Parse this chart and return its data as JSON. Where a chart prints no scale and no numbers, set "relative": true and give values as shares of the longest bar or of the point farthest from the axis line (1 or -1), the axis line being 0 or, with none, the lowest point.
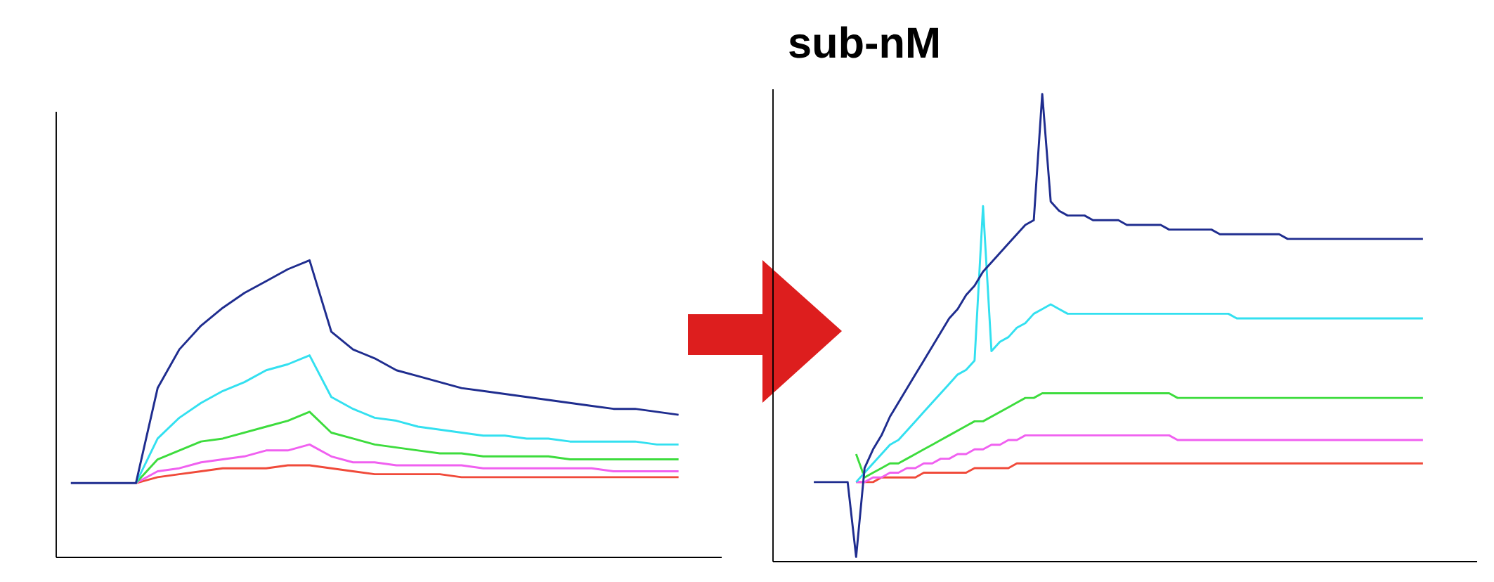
{
  "chart_data": [
    {
      "type": "line",
      "relative": true,
      "categories": [
        null,
        null,
        null,
        null,
        null,
        null,
        null,
        null,
        null,
        null,
        null,
        null,
        null,
        null,
        null,
        null,
        null,
        null,
        null,
        null,
        null,
        null,
        null,
        null,
        null,
        null,
        null,
        null,
        null
      ],
      "series": [
        {
          "color": "#1f2d8f",
          "values": [
            0.25,
            0.25,
            0.25,
            0.25,
            0.57,
            0.7,
            0.78,
            0.84,
            0.89,
            0.93,
            0.97,
            1.0,
            0.76,
            0.7,
            0.67,
            0.63,
            0.61,
            0.59,
            0.57,
            0.56,
            0.55,
            0.54,
            0.53,
            0.52,
            0.51,
            0.5,
            0.5,
            0.49,
            0.48
          ]
        },
        {
          "color": "#33e0f0",
          "values": [
            null,
            null,
            null,
            0.25,
            0.4,
            0.47,
            0.52,
            0.56,
            0.59,
            0.63,
            0.65,
            0.68,
            0.54,
            0.5,
            0.47,
            0.46,
            0.44,
            0.43,
            0.42,
            0.41,
            0.41,
            0.4,
            0.4,
            0.39,
            0.39,
            0.39,
            0.39,
            0.38,
            0.38
          ]
        },
        {
          "color": "#3ddc3d",
          "values": [
            null,
            null,
            null,
            0.25,
            0.33,
            0.36,
            0.39,
            0.4,
            0.42,
            0.44,
            0.46,
            0.49,
            0.42,
            0.4,
            0.38,
            0.37,
            0.36,
            0.35,
            0.35,
            0.34,
            0.34,
            0.34,
            0.34,
            0.33,
            0.33,
            0.33,
            0.33,
            0.33,
            0.33
          ]
        },
        {
          "color": "#f060f0",
          "values": [
            null,
            null,
            null,
            0.25,
            0.29,
            0.3,
            0.32,
            0.33,
            0.34,
            0.36,
            0.36,
            0.38,
            0.34,
            0.32,
            0.32,
            0.31,
            0.31,
            0.31,
            0.31,
            0.3,
            0.3,
            0.3,
            0.3,
            0.3,
            0.3,
            0.29,
            0.29,
            0.29,
            0.29
          ]
        },
        {
          "color": "#f04a3a",
          "values": [
            null,
            null,
            null,
            0.25,
            0.27,
            0.28,
            0.29,
            0.3,
            0.3,
            0.3,
            0.31,
            0.31,
            0.3,
            0.29,
            0.28,
            0.28,
            0.28,
            0.28,
            0.27,
            0.27,
            0.27,
            0.27,
            0.27,
            0.27,
            0.27,
            0.27,
            0.27,
            0.27,
            0.27
          ]
        }
      ]
    },
    {
      "type": "line",
      "relative": true,
      "title": "sub-nM",
      "categories": [
        null,
        null,
        null,
        null,
        null,
        null,
        null,
        null,
        null,
        null,
        null,
        null,
        null,
        null,
        null,
        null,
        null,
        null,
        null,
        null,
        null,
        null,
        null,
        null,
        null,
        null,
        null,
        null,
        null,
        null,
        null,
        null,
        null,
        null,
        null,
        null,
        null,
        null,
        null,
        null,
        null,
        null,
        null,
        null,
        null,
        null,
        null,
        null,
        null,
        null,
        null,
        null,
        null,
        null,
        null,
        null,
        null,
        null,
        null,
        null,
        null,
        null,
        null,
        null,
        null,
        null,
        null,
        null,
        null,
        null,
        null,
        null,
        null
      ],
      "series": [
        {
          "color": "#1f2d8f",
          "values": [
            0.17,
            0.17,
            0.17,
            0.17,
            0.17,
            0.01,
            0.2,
            0.24,
            0.27,
            0.31,
            0.34,
            0.37,
            0.4,
            0.43,
            0.46,
            0.49,
            0.52,
            0.54,
            0.57,
            0.59,
            0.62,
            0.64,
            0.66,
            0.68,
            0.7,
            0.72,
            0.73,
            1.0,
            0.77,
            0.75,
            0.74,
            0.74,
            0.74,
            0.73,
            0.73,
            0.73,
            0.73,
            0.72,
            0.72,
            0.72,
            0.72,
            0.72,
            0.71,
            0.71,
            0.71,
            0.71,
            0.71,
            0.71,
            0.7,
            0.7,
            0.7,
            0.7,
            0.7,
            0.7,
            0.7,
            0.7,
            0.69,
            0.69,
            0.69,
            0.69,
            0.69,
            0.69,
            0.69,
            0.69,
            0.69,
            0.69,
            0.69,
            0.69,
            0.69,
            0.69,
            0.69,
            0.69,
            0.69
          ]
        },
        {
          "color": "#33e0f0",
          "values": [
            null,
            null,
            null,
            null,
            null,
            0.17,
            0.19,
            0.21,
            0.23,
            0.25,
            0.26,
            0.28,
            0.3,
            0.32,
            0.34,
            0.36,
            0.38,
            0.4,
            0.41,
            0.43,
            0.76,
            0.45,
            0.47,
            0.48,
            0.5,
            0.51,
            0.53,
            0.54,
            0.55,
            0.54,
            0.53,
            0.53,
            0.53,
            0.53,
            0.53,
            0.53,
            0.53,
            0.53,
            0.53,
            0.53,
            0.53,
            0.53,
            0.53,
            0.53,
            0.53,
            0.53,
            0.53,
            0.53,
            0.53,
            0.53,
            0.52,
            0.52,
            0.52,
            0.52,
            0.52,
            0.52,
            0.52,
            0.52,
            0.52,
            0.52,
            0.52,
            0.52,
            0.52,
            0.52,
            0.52,
            0.52,
            0.52,
            0.52,
            0.52,
            0.52,
            0.52,
            0.52,
            0.52
          ]
        },
        {
          "color": "#3ddc3d",
          "values": [
            null,
            null,
            null,
            null,
            null,
            0.23,
            0.18,
            0.19,
            0.2,
            0.21,
            0.21,
            0.22,
            0.23,
            0.24,
            0.25,
            0.26,
            0.27,
            0.28,
            0.29,
            0.3,
            0.3,
            0.31,
            0.32,
            0.33,
            0.34,
            0.35,
            0.35,
            0.36,
            0.36,
            0.36,
            0.36,
            0.36,
            0.36,
            0.36,
            0.36,
            0.36,
            0.36,
            0.36,
            0.36,
            0.36,
            0.36,
            0.36,
            0.36,
            0.35,
            0.35,
            0.35,
            0.35,
            0.35,
            0.35,
            0.35,
            0.35,
            0.35,
            0.35,
            0.35,
            0.35,
            0.35,
            0.35,
            0.35,
            0.35,
            0.35,
            0.35,
            0.35,
            0.35,
            0.35,
            0.35,
            0.35,
            0.35,
            0.35,
            0.35,
            0.35,
            0.35,
            0.35,
            0.35
          ]
        },
        {
          "color": "#f060f0",
          "values": [
            null,
            null,
            null,
            null,
            null,
            0.17,
            0.17,
            0.18,
            0.18,
            0.19,
            0.19,
            0.2,
            0.2,
            0.21,
            0.21,
            0.22,
            0.22,
            0.23,
            0.23,
            0.24,
            0.24,
            0.25,
            0.25,
            0.26,
            0.26,
            0.27,
            0.27,
            0.27,
            0.27,
            0.27,
            0.27,
            0.27,
            0.27,
            0.27,
            0.27,
            0.27,
            0.27,
            0.27,
            0.27,
            0.27,
            0.27,
            0.27,
            0.27,
            0.26,
            0.26,
            0.26,
            0.26,
            0.26,
            0.26,
            0.26,
            0.26,
            0.26,
            0.26,
            0.26,
            0.26,
            0.26,
            0.26,
            0.26,
            0.26,
            0.26,
            0.26,
            0.26,
            0.26,
            0.26,
            0.26,
            0.26,
            0.26,
            0.26,
            0.26,
            0.26,
            0.26,
            0.26,
            0.26
          ]
        },
        {
          "color": "#f04a3a",
          "values": [
            null,
            null,
            null,
            null,
            null,
            0.17,
            0.17,
            0.17,
            0.18,
            0.18,
            0.18,
            0.18,
            0.18,
            0.19,
            0.19,
            0.19,
            0.19,
            0.19,
            0.19,
            0.2,
            0.2,
            0.2,
            0.2,
            0.2,
            0.21,
            0.21,
            0.21,
            0.21,
            0.21,
            0.21,
            0.21,
            0.21,
            0.21,
            0.21,
            0.21,
            0.21,
            0.21,
            0.21,
            0.21,
            0.21,
            0.21,
            0.21,
            0.21,
            0.21,
            0.21,
            0.21,
            0.21,
            0.21,
            0.21,
            0.21,
            0.21,
            0.21,
            0.21,
            0.21,
            0.21,
            0.21,
            0.21,
            0.21,
            0.21,
            0.21,
            0.21,
            0.21,
            0.21,
            0.21,
            0.21,
            0.21,
            0.21,
            0.21,
            0.21,
            0.21,
            0.21,
            0.21,
            0.21
          ]
        }
      ]
    }
  ]
}
